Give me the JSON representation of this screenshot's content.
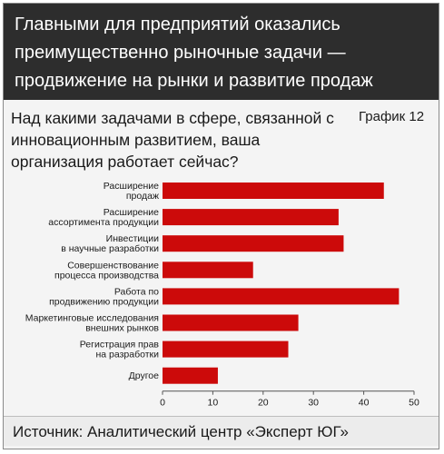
{
  "header": {
    "title": "Главными для предприятий оказались преимущественно рыночные задачи — продвижение на рынки и развитие продаж"
  },
  "question": "Над какими задачами в сфере, связанной с инновационным развитием, ваша организация работает сейчас?",
  "chart_number": "График 12",
  "source": "Источник: Аналитический центр «Эксперт ЮГ»",
  "colors": {
    "bar": "#cc0a0a",
    "header_bg": "#2d2d2d",
    "panel_bg": "#f4f4f4"
  },
  "chart_data": {
    "type": "bar",
    "orientation": "horizontal",
    "categories": [
      [
        "Расширение",
        "продаж"
      ],
      [
        "Расширение",
        "ассортимента продукции"
      ],
      [
        "Инвестиции",
        "в научные разработки"
      ],
      [
        "Совершенствование",
        "процесса производства"
      ],
      [
        "Работа по",
        "продвижению продукции"
      ],
      [
        "Маркетинговые исследования",
        "внешних рынков"
      ],
      [
        "Регистрация прав",
        "на разработки"
      ],
      [
        "Другое"
      ]
    ],
    "values": [
      44,
      35,
      36,
      18,
      47,
      27,
      25,
      11
    ],
    "xlim": [
      0,
      50
    ],
    "xticks": [
      0,
      10,
      20,
      30,
      40,
      50
    ],
    "grid": false
  }
}
